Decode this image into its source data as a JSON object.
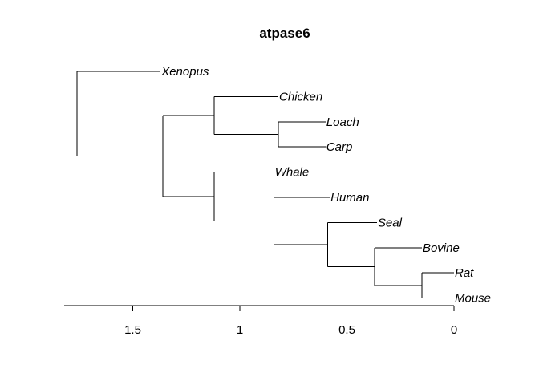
{
  "chart_data": {
    "type": "dendrogram",
    "title": "atpase6",
    "xlabel": "",
    "ylabel": "",
    "xlim": [
      1.82,
      0
    ],
    "x_ticks": [
      1.5,
      1,
      0.5,
      0
    ],
    "x_tick_labels": [
      "1.5",
      "1",
      "0.5",
      "0"
    ],
    "leaves": [
      "Xenopus",
      "Chicken",
      "Loach",
      "Carp",
      "Whale",
      "Human",
      "Seal",
      "Bovine",
      "Rat",
      "Mouse"
    ],
    "leaf_heights": {
      "Xenopus": 1.37,
      "Chicken": 0.82,
      "Loach": 0.6,
      "Carp": 0.6,
      "Whale": 0.84,
      "Human": 0.58,
      "Seal": 0.36,
      "Bovine": 0.15,
      "Rat": 0,
      "Mouse": 0
    },
    "merges": [
      {
        "id": "n1",
        "children": [
          "Loach",
          "Carp"
        ],
        "height": 0.82
      },
      {
        "id": "n2",
        "children": [
          "Chicken",
          "n1"
        ],
        "height": 1.12
      },
      {
        "id": "n3",
        "children": [
          "Rat",
          "Mouse"
        ],
        "height": 0.15
      },
      {
        "id": "n4",
        "children": [
          "Bovine",
          "n3"
        ],
        "height": 0.37
      },
      {
        "id": "n5",
        "children": [
          "Seal",
          "n4"
        ],
        "height": 0.59
      },
      {
        "id": "n6",
        "children": [
          "Human",
          "n5"
        ],
        "height": 0.84
      },
      {
        "id": "n7",
        "children": [
          "Whale",
          "n6"
        ],
        "height": 1.12
      },
      {
        "id": "n8",
        "children": [
          "n2",
          "n7"
        ],
        "height": 1.36
      },
      {
        "id": "n9",
        "children": [
          "Xenopus",
          "n8"
        ],
        "height": 1.76
      }
    ]
  }
}
